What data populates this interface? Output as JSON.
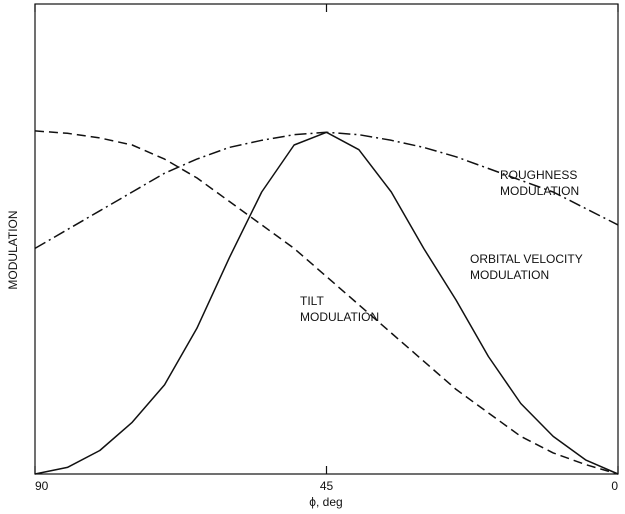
{
  "chart_data": {
    "type": "line",
    "y_label": "MODULATION",
    "x_label": "ϕ, deg",
    "x": [
      90,
      85,
      80,
      75,
      70,
      65,
      60,
      55,
      50,
      45,
      40,
      35,
      30,
      25,
      20,
      15,
      10,
      5,
      0
    ],
    "xlim": [
      90,
      0
    ],
    "xticks": [
      90,
      45,
      0
    ],
    "ylim": [
      0,
      1
    ],
    "series": [
      {
        "name": "ROUGHNESS MODULATION",
        "color": "#111111",
        "style": "dashdot",
        "values": [
          0.48,
          0.52,
          0.56,
          0.6,
          0.64,
          0.67,
          0.695,
          0.71,
          0.722,
          0.727,
          0.722,
          0.71,
          0.695,
          0.675,
          0.65,
          0.625,
          0.6,
          0.565,
          0.53
        ]
      },
      {
        "name": "ORBITAL VELOCITY MODULATION",
        "color": "#111111",
        "style": "solid",
        "values": [
          0,
          0.014,
          0.05,
          0.11,
          0.19,
          0.31,
          0.46,
          0.6,
          0.7,
          0.727,
          0.69,
          0.6,
          0.48,
          0.37,
          0.25,
          0.15,
          0.08,
          0.03,
          0
        ]
      },
      {
        "name": "TILT MODULATION",
        "color": "#111111",
        "style": "dashed",
        "values": [
          0.73,
          0.725,
          0.715,
          0.7,
          0.67,
          0.63,
          0.58,
          0.53,
          0.48,
          0.42,
          0.36,
          0.3,
          0.24,
          0.18,
          0.13,
          0.08,
          0.045,
          0.02,
          0
        ]
      }
    ],
    "annotations": [
      [
        "ROUGHNESS",
        "MODULATION"
      ],
      [
        "ORBITAL VELOCITY",
        "MODULATION"
      ],
      [
        "TILT",
        "MODULATION"
      ]
    ]
  }
}
